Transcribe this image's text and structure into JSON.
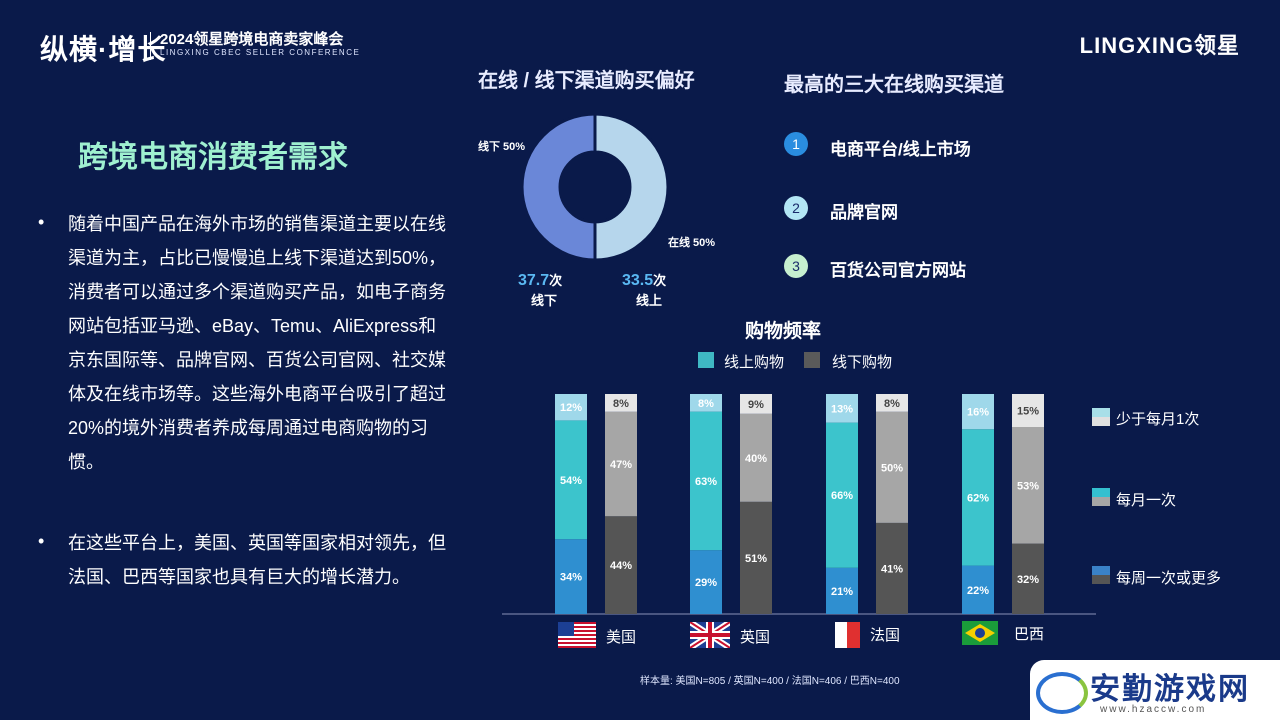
{
  "header": {
    "logo_text": "纵横·增长",
    "conference_title": "2024领星跨境电商卖家峰会",
    "conference_subtitle": "LINGXING CBEC SELLER CONFERENCE",
    "brand": "LINGXING领星"
  },
  "left": {
    "heading": "跨境电商消费者需求",
    "bullets": [
      "随着中国产品在海外市场的销售渠道主要以在线渠道为主，占比已慢慢追上线下渠道达到50%，消费者可以通过多个渠道购买产品，如电子商务网站包括亚马逊、eBay、Temu、AliExpress和京东国际等、品牌官网、百货公司官网、社交媒体及在线市场等。这些海外电商平台吸引了超过20%的境外消费者养成每周通过电商购物的习惯。",
      "在这些平台上，美国、英国等国家相对领先，但法国、巴西等国家也具有巨大的增长潜力。"
    ],
    "bullet_char": "•"
  },
  "donut": {
    "title": "在线 / 线下渠道购买偏好",
    "offline_label": "线下 50%",
    "online_label": "在线 50%",
    "offline_count": "37.7",
    "online_count": "33.5",
    "unit": "次",
    "offline_caption": "线下",
    "online_caption": "线上",
    "colors": {
      "offline": "#6a87d8",
      "online": "#b6d6ec"
    }
  },
  "top_channels": {
    "title": "最高的三大在线购买渠道",
    "items": [
      {
        "num": "1",
        "label": "电商平台/线上市场",
        "color": "#2a8de0"
      },
      {
        "num": "2",
        "label": "品牌官网",
        "color": "#b3e6f5"
      },
      {
        "num": "3",
        "label": "百货公司官方网站",
        "color": "#c6efcf"
      }
    ]
  },
  "legend": {
    "online": "线上购物",
    "offline": "线下购物",
    "freq": [
      "少于每月1次",
      "每月一次",
      "每周一次或更多"
    ]
  },
  "sample_note": "样本量: 美国N=805 / 英国N=400 / 法国N=406 / 巴西N=400",
  "watermark": {
    "text": "安勤游戏网",
    "url": "www.hzaccw.com"
  },
  "chart_data": {
    "type": "bar",
    "title": "购物频率",
    "categories": [
      "美国",
      "英国",
      "法国",
      "巴西"
    ],
    "stack_order": [
      "每周一次或更多",
      "每月一次",
      "少于每月1次"
    ],
    "series": [
      {
        "name": "线上购物",
        "stacks": [
          [
            34,
            54,
            12
          ],
          [
            29,
            63,
            8
          ],
          [
            21,
            66,
            13
          ],
          [
            22,
            62,
            16
          ]
        ]
      },
      {
        "name": "线下购物",
        "stacks": [
          [
            44,
            47,
            8
          ],
          [
            51,
            40,
            9
          ],
          [
            41,
            50,
            8
          ],
          [
            32,
            53,
            15
          ]
        ]
      }
    ],
    "ylim": [
      0,
      100
    ]
  }
}
